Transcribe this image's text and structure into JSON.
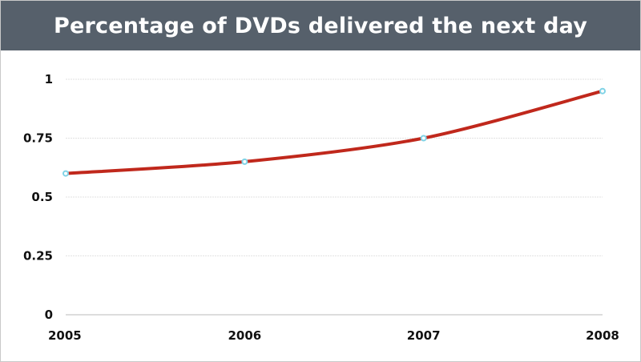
{
  "chart_data": {
    "type": "line",
    "title": "Percentage of DVDs delivered the next day",
    "xlabel": "",
    "ylabel": "",
    "categories": [
      "2005",
      "2006",
      "2007",
      "2008"
    ],
    "series": [
      {
        "values": [
          0.6,
          0.65,
          0.75,
          0.95
        ]
      }
    ],
    "ylim": [
      0,
      1
    ],
    "yticks": [
      0,
      0.25,
      0.5,
      0.75,
      1
    ],
    "ytick_labels": [
      "0",
      "0.25",
      "0.5",
      "0.75",
      "1"
    ],
    "grid": true,
    "legend": "none",
    "colors": {
      "title_background": "#56606b",
      "title_text": "#ffffff",
      "line": "#c0281c",
      "marker_stroke": "#7fd3e6",
      "marker_fill": "#ffffff",
      "gridline": "#e2e2e2",
      "axis": "#bbbbbb"
    }
  }
}
